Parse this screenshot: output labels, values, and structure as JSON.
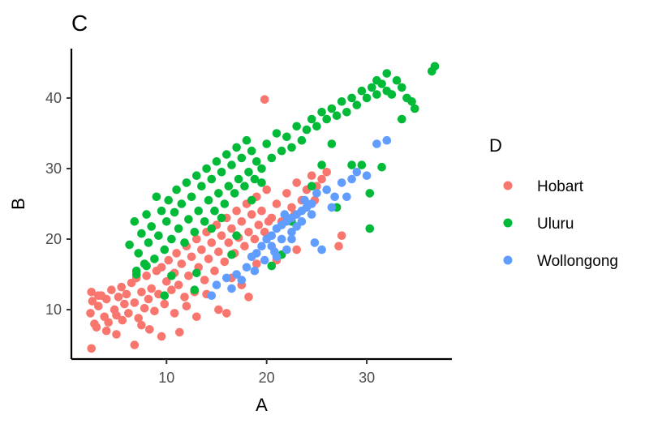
{
  "chart_data": {
    "type": "scatter",
    "title": "C",
    "xlabel": "A",
    "ylabel": "B",
    "xlim": [
      0.5,
      38.5
    ],
    "ylim": [
      3.0,
      47.0
    ],
    "xticks": [
      10,
      20,
      30
    ],
    "yticks": [
      10,
      20,
      30,
      40
    ],
    "grid": false,
    "legend": {
      "title": "D",
      "position": "right"
    },
    "series": [
      {
        "name": "Hobart",
        "color": "#F8766D",
        "points": [
          [
            2.5,
            12.5
          ],
          [
            2.6,
            11.2
          ],
          [
            2.4,
            9.5
          ],
          [
            2.8,
            8.0
          ],
          [
            3.0,
            7.5
          ],
          [
            3.2,
            10.5
          ],
          [
            3.5,
            12.0
          ],
          [
            3.8,
            9.0
          ],
          [
            4.0,
            11.5
          ],
          [
            4.2,
            8.2
          ],
          [
            4.5,
            12.8
          ],
          [
            4.8,
            10.0
          ],
          [
            5.0,
            9.2
          ],
          [
            5.2,
            11.8
          ],
          [
            5.5,
            13.2
          ],
          [
            5.6,
            8.5
          ],
          [
            5.8,
            10.8
          ],
          [
            6.0,
            12.2
          ],
          [
            6.2,
            9.5
          ],
          [
            6.5,
            13.8
          ],
          [
            6.8,
            11.0
          ],
          [
            7.0,
            14.5
          ],
          [
            7.2,
            8.8
          ],
          [
            7.5,
            12.5
          ],
          [
            7.8,
            10.2
          ],
          [
            8.0,
            14.8
          ],
          [
            8.2,
            11.5
          ],
          [
            8.5,
            13.0
          ],
          [
            8.8,
            9.8
          ],
          [
            9.0,
            15.5
          ],
          [
            9.2,
            12.2
          ],
          [
            9.5,
            16.0
          ],
          [
            9.8,
            10.8
          ],
          [
            10.0,
            14.0
          ],
          [
            10.2,
            17.0
          ],
          [
            10.5,
            12.8
          ],
          [
            10.8,
            15.2
          ],
          [
            11.0,
            18.0
          ],
          [
            11.2,
            13.5
          ],
          [
            11.5,
            16.5
          ],
          [
            11.8,
            11.8
          ],
          [
            12.0,
            19.0
          ],
          [
            12.2,
            14.8
          ],
          [
            12.5,
            17.5
          ],
          [
            12.8,
            12.5
          ],
          [
            13.0,
            20.0
          ],
          [
            13.2,
            16.0
          ],
          [
            13.5,
            18.5
          ],
          [
            13.8,
            14.2
          ],
          [
            14.0,
            21.0
          ],
          [
            14.2,
            17.2
          ],
          [
            14.5,
            19.5
          ],
          [
            14.8,
            15.5
          ],
          [
            15.0,
            22.0
          ],
          [
            15.2,
            18.2
          ],
          [
            15.5,
            20.5
          ],
          [
            15.8,
            16.8
          ],
          [
            16.0,
            23.0
          ],
          [
            16.2,
            19.5
          ],
          [
            16.5,
            21.5
          ],
          [
            16.8,
            18.0
          ],
          [
            17.0,
            24.0
          ],
          [
            17.2,
            20.2
          ],
          [
            17.5,
            22.5
          ],
          [
            17.8,
            19.0
          ],
          [
            18.0,
            25.0
          ],
          [
            18.2,
            21.0
          ],
          [
            18.5,
            23.5
          ],
          [
            18.8,
            20.0
          ],
          [
            19.0,
            26.0
          ],
          [
            19.2,
            22.0
          ],
          [
            19.5,
            24.0
          ],
          [
            19.8,
            21.0
          ],
          [
            20.0,
            27.0
          ],
          [
            20.5,
            23.0
          ],
          [
            21.0,
            25.0
          ],
          [
            21.5,
            22.5
          ],
          [
            22.0,
            26.5
          ],
          [
            22.5,
            24.5
          ],
          [
            23.0,
            28.0
          ],
          [
            23.5,
            25.5
          ],
          [
            24.0,
            27.0
          ],
          [
            24.5,
            29.0
          ],
          [
            25.0,
            27.5
          ],
          [
            25.5,
            28.5
          ],
          [
            26.0,
            29.5
          ],
          [
            19.8,
            39.8
          ],
          [
            27.2,
            19.0
          ],
          [
            2.5,
            4.5
          ],
          [
            6.8,
            5.0
          ],
          [
            11.3,
            6.8
          ],
          [
            8.3,
            7.2
          ],
          [
            9.5,
            6.2
          ],
          [
            5.0,
            6.5
          ],
          [
            13.0,
            9.0
          ],
          [
            16.0,
            9.5
          ],
          [
            18.2,
            11.8
          ],
          [
            15.2,
            10.0
          ],
          [
            21.0,
            17.0
          ],
          [
            23.0,
            18.5
          ],
          [
            20.2,
            22.5
          ],
          [
            22.8,
            23.5
          ],
          [
            24.8,
            25.5
          ],
          [
            27.5,
            20.5
          ],
          [
            12.0,
            10.5
          ],
          [
            14.0,
            12.2
          ],
          [
            16.5,
            14.5
          ],
          [
            19.0,
            16.5
          ],
          [
            17.5,
            13.5
          ],
          [
            10.8,
            9.5
          ],
          [
            7.5,
            7.8
          ],
          [
            4.0,
            7.0
          ],
          [
            3.2,
            12.0
          ]
        ]
      },
      {
        "name": "Uluru",
        "color": "#00BA38",
        "points": [
          [
            6.3,
            19.2
          ],
          [
            6.8,
            22.5
          ],
          [
            7.0,
            15.5
          ],
          [
            7.2,
            18.0
          ],
          [
            7.5,
            20.8
          ],
          [
            7.8,
            16.5
          ],
          [
            8.0,
            23.5
          ],
          [
            8.2,
            19.5
          ],
          [
            8.5,
            21.8
          ],
          [
            8.8,
            17.2
          ],
          [
            9.0,
            26.0
          ],
          [
            9.2,
            20.5
          ],
          [
            9.5,
            24.0
          ],
          [
            9.8,
            18.5
          ],
          [
            10.0,
            22.5
          ],
          [
            10.2,
            25.5
          ],
          [
            10.5,
            20.0
          ],
          [
            10.8,
            23.8
          ],
          [
            11.0,
            27.0
          ],
          [
            11.2,
            21.5
          ],
          [
            11.5,
            25.0
          ],
          [
            11.8,
            19.5
          ],
          [
            12.0,
            28.0
          ],
          [
            12.2,
            22.8
          ],
          [
            12.5,
            26.0
          ],
          [
            12.8,
            21.0
          ],
          [
            13.0,
            29.0
          ],
          [
            13.2,
            24.0
          ],
          [
            13.5,
            27.5
          ],
          [
            13.8,
            22.5
          ],
          [
            14.0,
            30.0
          ],
          [
            14.2,
            25.5
          ],
          [
            14.5,
            28.5
          ],
          [
            14.8,
            24.0
          ],
          [
            15.0,
            31.0
          ],
          [
            15.2,
            26.5
          ],
          [
            15.5,
            29.5
          ],
          [
            15.8,
            25.0
          ],
          [
            16.0,
            32.0
          ],
          [
            16.2,
            27.5
          ],
          [
            16.5,
            30.5
          ],
          [
            16.8,
            26.5
          ],
          [
            17.0,
            33.0
          ],
          [
            17.2,
            28.5
          ],
          [
            17.5,
            31.5
          ],
          [
            17.8,
            27.5
          ],
          [
            18.0,
            34.0
          ],
          [
            18.2,
            29.5
          ],
          [
            18.5,
            32.5
          ],
          [
            18.8,
            28.5
          ],
          [
            19.0,
            31.0
          ],
          [
            19.5,
            30.0
          ],
          [
            20.0,
            33.5
          ],
          [
            20.5,
            31.5
          ],
          [
            21.0,
            35.0
          ],
          [
            21.5,
            32.5
          ],
          [
            22.0,
            34.5
          ],
          [
            22.5,
            33.0
          ],
          [
            23.0,
            36.0
          ],
          [
            23.5,
            34.0
          ],
          [
            24.0,
            35.5
          ],
          [
            24.5,
            37.0
          ],
          [
            25.0,
            36.0
          ],
          [
            25.5,
            38.0
          ],
          [
            26.0,
            37.0
          ],
          [
            26.5,
            38.5
          ],
          [
            27.0,
            37.5
          ],
          [
            27.5,
            39.5
          ],
          [
            28.0,
            38.0
          ],
          [
            28.5,
            40.0
          ],
          [
            29.0,
            39.0
          ],
          [
            29.5,
            41.0
          ],
          [
            30.0,
            40.0
          ],
          [
            30.5,
            41.5
          ],
          [
            31.0,
            40.5
          ],
          [
            31.5,
            42.0
          ],
          [
            32.0,
            41.0
          ],
          [
            32.5,
            40.5
          ],
          [
            33.0,
            42.5
          ],
          [
            33.5,
            41.5
          ],
          [
            34.0,
            40.0
          ],
          [
            34.5,
            39.5
          ],
          [
            36.8,
            44.5
          ],
          [
            36.5,
            43.8
          ],
          [
            32.0,
            43.5
          ],
          [
            31.0,
            42.5
          ],
          [
            30.3,
            26.5
          ],
          [
            30.3,
            21.5
          ],
          [
            27.0,
            24.5
          ],
          [
            28.5,
            30.5
          ],
          [
            29.5,
            30.5
          ],
          [
            31.5,
            30.2
          ],
          [
            33.5,
            37.0
          ],
          [
            34.8,
            38.5
          ],
          [
            21.5,
            17.8
          ],
          [
            20.5,
            16.2
          ],
          [
            17.0,
            20.5
          ],
          [
            16.5,
            17.8
          ],
          [
            13.0,
            15.2
          ],
          [
            12.8,
            12.8
          ],
          [
            9.8,
            12.0
          ],
          [
            10.5,
            14.8
          ],
          [
            8.0,
            16.2
          ],
          [
            7.0,
            15.0
          ],
          [
            22.5,
            22.5
          ],
          [
            24.5,
            27.5
          ],
          [
            25.5,
            30.5
          ],
          [
            26.5,
            33.5
          ],
          [
            18.5,
            25.5
          ],
          [
            19.5,
            28.0
          ],
          [
            15.5,
            23.0
          ],
          [
            14.5,
            21.5
          ]
        ]
      },
      {
        "name": "Wollongong",
        "color": "#619CFF",
        "points": [
          [
            15.0,
            13.5
          ],
          [
            16.0,
            14.5
          ],
          [
            17.0,
            15.0
          ],
          [
            18.0,
            16.0
          ],
          [
            18.5,
            17.5
          ],
          [
            19.0,
            18.0
          ],
          [
            19.5,
            19.0
          ],
          [
            20.0,
            20.0
          ],
          [
            20.5,
            20.5
          ],
          [
            21.0,
            21.5
          ],
          [
            21.5,
            22.0
          ],
          [
            22.0,
            22.5
          ],
          [
            22.5,
            23.0
          ],
          [
            23.0,
            23.5
          ],
          [
            23.5,
            24.0
          ],
          [
            24.0,
            24.5
          ],
          [
            24.5,
            25.0
          ],
          [
            20.5,
            19.0
          ],
          [
            21.5,
            20.0
          ],
          [
            22.5,
            21.0
          ],
          [
            23.5,
            22.5
          ],
          [
            24.5,
            23.5
          ],
          [
            22.0,
            18.5
          ],
          [
            24.8,
            19.5
          ],
          [
            25.5,
            18.5
          ],
          [
            26.5,
            24.5
          ],
          [
            26.8,
            26.0
          ],
          [
            28.0,
            26.0
          ],
          [
            29.0,
            29.5
          ],
          [
            30.0,
            29.0
          ],
          [
            21.0,
            17.5
          ],
          [
            22.5,
            20.0
          ],
          [
            23.0,
            21.8
          ],
          [
            19.8,
            17.0
          ],
          [
            20.8,
            18.2
          ],
          [
            17.5,
            14.2
          ],
          [
            16.5,
            13.0
          ],
          [
            14.5,
            12.0
          ],
          [
            18.8,
            15.5
          ],
          [
            21.8,
            23.5
          ],
          [
            23.8,
            25.5
          ],
          [
            25.0,
            26.5
          ],
          [
            26.0,
            27.0
          ],
          [
            27.5,
            28.0
          ],
          [
            28.5,
            28.5
          ],
          [
            31.0,
            33.5
          ],
          [
            32.0,
            34.0
          ]
        ]
      }
    ]
  }
}
